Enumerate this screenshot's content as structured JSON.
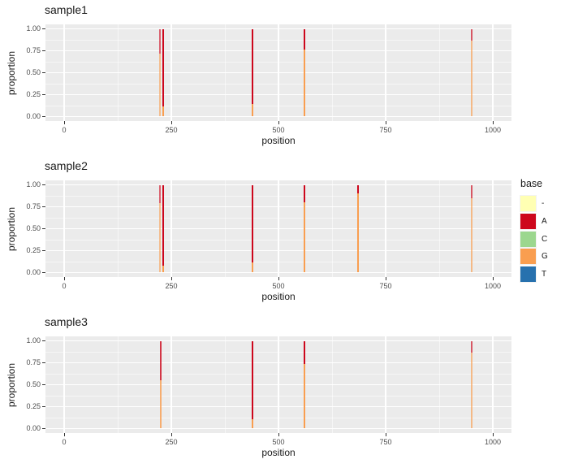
{
  "figure_title": "",
  "axes": {
    "x_label": "position",
    "y_label": "proportion",
    "x_ticks": [
      0,
      250,
      500,
      750,
      1000
    ],
    "y_ticks": [
      {
        "value": 0.0,
        "label": "0.00"
      },
      {
        "value": 0.25,
        "label": "0.25"
      },
      {
        "value": 0.5,
        "label": "0.50"
      },
      {
        "value": 0.75,
        "label": "0.75"
      },
      {
        "value": 1.0,
        "label": "1.00"
      }
    ],
    "x_range_shown": [
      0,
      1000
    ],
    "y_range": [
      0,
      1
    ],
    "grid": "on",
    "panel_background": "#ebebeb",
    "gridline_color": "#ffffff"
  },
  "legend": {
    "title": "base",
    "position": "right",
    "entries": [
      {
        "label": "-",
        "color": "#ffffb3"
      },
      {
        "label": "A",
        "color": "#cd071c"
      },
      {
        "label": "C",
        "color": "#9cd78e"
      },
      {
        "label": "G",
        "color": "#f99e50"
      },
      {
        "label": "T",
        "color": "#2771ae"
      }
    ]
  },
  "palette": {
    "-": "#ffffb3",
    "A": "#cd071c",
    "C": "#9cd78e",
    "G": "#f99e50",
    "T": "#2771ae"
  },
  "chart_data": [
    {
      "type": "bar",
      "stacked": true,
      "title": "sample1",
      "xlabel": "position",
      "ylabel": "proportion",
      "bars": [
        {
          "position": 224,
          "alpha": 0.6,
          "segments": [
            {
              "base": "G",
              "proportion": 0.72
            },
            {
              "base": "A",
              "proportion": 0.28
            }
          ]
        },
        {
          "position": 231,
          "alpha": 1.0,
          "segments": [
            {
              "base": "G",
              "proportion": 0.12
            },
            {
              "base": "A",
              "proportion": 0.88
            }
          ]
        },
        {
          "position": 439,
          "alpha": 1.0,
          "segments": [
            {
              "base": "G",
              "proportion": 0.14
            },
            {
              "base": "A",
              "proportion": 0.86
            }
          ]
        },
        {
          "position": 560,
          "alpha": 1.0,
          "segments": [
            {
              "base": "G",
              "proportion": 0.76
            },
            {
              "base": "A",
              "proportion": 0.24
            }
          ]
        },
        {
          "position": 950,
          "alpha": 0.65,
          "segments": [
            {
              "base": "G",
              "proportion": 0.87
            },
            {
              "base": "A",
              "proportion": 0.13
            }
          ]
        }
      ]
    },
    {
      "type": "bar",
      "stacked": true,
      "title": "sample2",
      "xlabel": "position",
      "ylabel": "proportion",
      "bars": [
        {
          "position": 224,
          "alpha": 0.6,
          "segments": [
            {
              "base": "G",
              "proportion": 0.79
            },
            {
              "base": "A",
              "proportion": 0.21
            }
          ]
        },
        {
          "position": 231,
          "alpha": 1.0,
          "segments": [
            {
              "base": "G",
              "proportion": 0.08
            },
            {
              "base": "A",
              "proportion": 0.92
            }
          ]
        },
        {
          "position": 439,
          "alpha": 1.0,
          "segments": [
            {
              "base": "G",
              "proportion": 0.12
            },
            {
              "base": "A",
              "proportion": 0.88
            }
          ]
        },
        {
          "position": 560,
          "alpha": 1.0,
          "segments": [
            {
              "base": "G",
              "proportion": 0.8
            },
            {
              "base": "A",
              "proportion": 0.2
            }
          ]
        },
        {
          "position": 686,
          "alpha": 1.0,
          "segments": [
            {
              "base": "G",
              "proportion": 0.9
            },
            {
              "base": "A",
              "proportion": 0.1
            }
          ]
        },
        {
          "position": 950,
          "alpha": 0.65,
          "segments": [
            {
              "base": "G",
              "proportion": 0.85
            },
            {
              "base": "A",
              "proportion": 0.15
            }
          ]
        }
      ]
    },
    {
      "type": "bar",
      "stacked": true,
      "title": "sample3",
      "xlabel": "position",
      "ylabel": "proportion",
      "bars": [
        {
          "position": 225,
          "alpha": 0.8,
          "segments": [
            {
              "base": "G",
              "proportion": 0.55
            },
            {
              "base": "A",
              "proportion": 0.45
            }
          ]
        },
        {
          "position": 439,
          "alpha": 1.0,
          "segments": [
            {
              "base": "G",
              "proportion": 0.11
            },
            {
              "base": "A",
              "proportion": 0.89
            }
          ]
        },
        {
          "position": 560,
          "alpha": 1.0,
          "segments": [
            {
              "base": "G",
              "proportion": 0.74
            },
            {
              "base": "A",
              "proportion": 0.26
            }
          ]
        },
        {
          "position": 950,
          "alpha": 0.65,
          "segments": [
            {
              "base": "G",
              "proportion": 0.87
            },
            {
              "base": "A",
              "proportion": 0.13
            }
          ]
        }
      ]
    }
  ]
}
